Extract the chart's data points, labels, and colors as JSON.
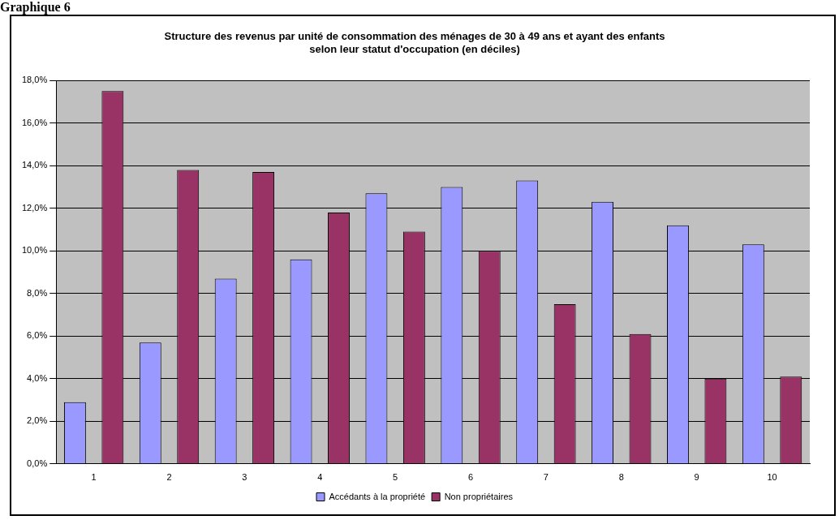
{
  "chart_data": {
    "type": "bar",
    "title": "Structure des revenus par unité de consommation des ménages de 30 à 49 ans et ayant des enfants\nselon leur statut d'occupation (en déciles)",
    "annotations": [
      "Graphique 6"
    ],
    "categories": [
      "1",
      "2",
      "3",
      "4",
      "5",
      "6",
      "7",
      "8",
      "9",
      "10"
    ],
    "series": [
      {
        "name": "Accédants à la propriété",
        "color": "#9999ff",
        "values": [
          2.9,
          5.7,
          8.7,
          9.6,
          12.7,
          13.0,
          13.3,
          12.3,
          11.2,
          10.3
        ]
      },
      {
        "name": "Non propriétaires",
        "color": "#993366",
        "values": [
          17.5,
          13.8,
          13.7,
          11.8,
          10.9,
          10.0,
          7.5,
          6.1,
          4.0,
          4.1
        ]
      }
    ],
    "ylim": [
      0,
      18
    ],
    "yticks": [
      {
        "value": 0,
        "label": "0,0%"
      },
      {
        "value": 2,
        "label": "2,0%"
      },
      {
        "value": 4,
        "label": "4,0%"
      },
      {
        "value": 6,
        "label": "6,0%"
      },
      {
        "value": 8,
        "label": "8,0%"
      },
      {
        "value": 10,
        "label": "10,0%"
      },
      {
        "value": 12,
        "label": "12,0%"
      },
      {
        "value": 14,
        "label": "14,0%"
      },
      {
        "value": 16,
        "label": "16,0%"
      },
      {
        "value": 18,
        "label": "18,0%"
      }
    ],
    "grid": "y",
    "legend": "bottom"
  }
}
